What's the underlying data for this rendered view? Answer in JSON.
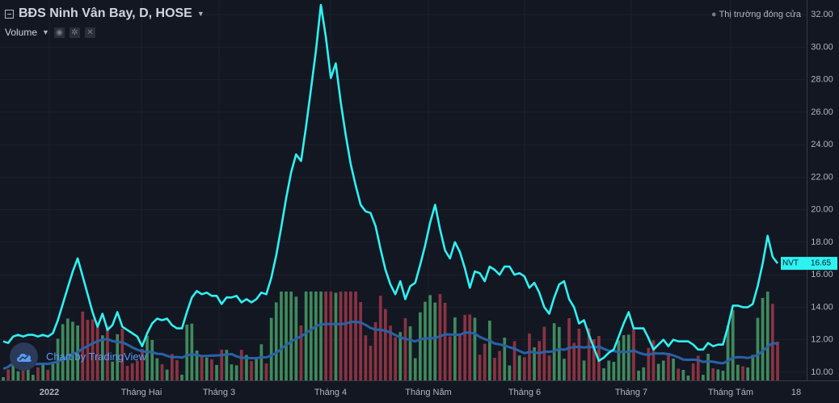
{
  "header": {
    "title": "BĐS Ninh Vân Bay, D, HOSE",
    "market_status": "Thị trường đóng cửa",
    "volume_label": "Volume"
  },
  "price_badge": {
    "symbol": "NVT",
    "value": "16.65"
  },
  "watermark": "Chart by TradingView",
  "colors": {
    "background": "#131722",
    "price_line": "#2ef2f2",
    "volume_up": "#3f8a5c",
    "volume_down": "#8a3342",
    "volume_ma": "#2962a6",
    "text": "#b2b5be"
  },
  "chart_data": {
    "type": "line",
    "ylim": [
      9.5,
      32.9
    ],
    "y_ticks": [
      "10.00",
      "12.00",
      "14.00",
      "16.00",
      "18.00",
      "20.00",
      "22.00",
      "24.00",
      "26.00",
      "28.00",
      "30.00",
      "32.00"
    ],
    "x_ticks": [
      "2022",
      "Tháng Hai",
      "Tháng 3",
      "Tháng 4",
      "Tháng Năm",
      "Tháng 6",
      "Tháng 7",
      "Tháng Tám",
      "18"
    ],
    "series": [
      {
        "values": [
          11.9,
          11.8,
          12.2,
          12.3,
          12.2,
          12.3,
          12.3,
          12.2,
          12.3,
          12.2,
          12.4,
          13.2,
          14.2,
          15.2,
          16.2,
          17.0,
          15.9,
          14.8,
          13.7,
          12.8,
          13.6,
          12.6,
          12.9,
          13.7,
          12.8,
          12.6,
          12.4,
          12.2,
          11.6,
          12.4,
          13.0,
          13.3,
          13.2,
          13.3,
          12.9,
          12.7,
          12.7,
          13.7,
          14.6,
          15.0,
          14.8,
          14.9,
          14.7,
          14.7,
          14.2,
          14.6,
          14.6,
          14.7,
          14.3,
          14.5,
          14.3,
          14.5,
          14.9,
          14.8,
          15.8,
          17.2,
          18.9,
          20.7,
          22.3,
          23.4,
          23.0,
          25.1,
          27.4,
          29.8,
          32.6,
          30.6,
          28.1,
          29.0,
          26.6,
          24.6,
          22.8,
          21.5,
          20.3,
          19.9,
          19.8,
          19.0,
          17.6,
          16.3,
          15.4,
          14.8,
          15.6,
          14.5,
          15.3,
          15.5,
          16.6,
          17.8,
          19.2,
          20.3,
          18.8,
          17.5,
          17.0,
          18.0,
          17.4,
          16.4,
          15.2,
          16.2,
          16.1,
          15.6,
          16.5,
          16.3,
          16.0,
          16.5,
          16.5,
          16.0,
          16.1,
          15.9,
          15.2,
          15.5,
          14.9,
          14.0,
          13.6,
          14.6,
          15.4,
          15.6,
          14.5,
          14.0,
          13.0,
          13.2,
          12.3,
          11.5,
          10.7,
          10.9,
          11.2,
          11.4,
          12.2,
          13.0,
          13.7,
          12.7,
          12.7,
          12.7,
          12.1,
          11.4,
          11.7,
          12.0,
          11.6,
          12.0,
          11.9,
          11.9,
          11.9,
          11.7,
          11.4,
          11.4,
          11.8,
          11.6,
          11.7,
          11.7,
          12.8,
          14.1,
          14.1,
          14.0,
          14.0,
          14.2,
          15.3,
          16.7,
          18.4,
          17.1,
          16.7
        ]
      }
    ]
  }
}
